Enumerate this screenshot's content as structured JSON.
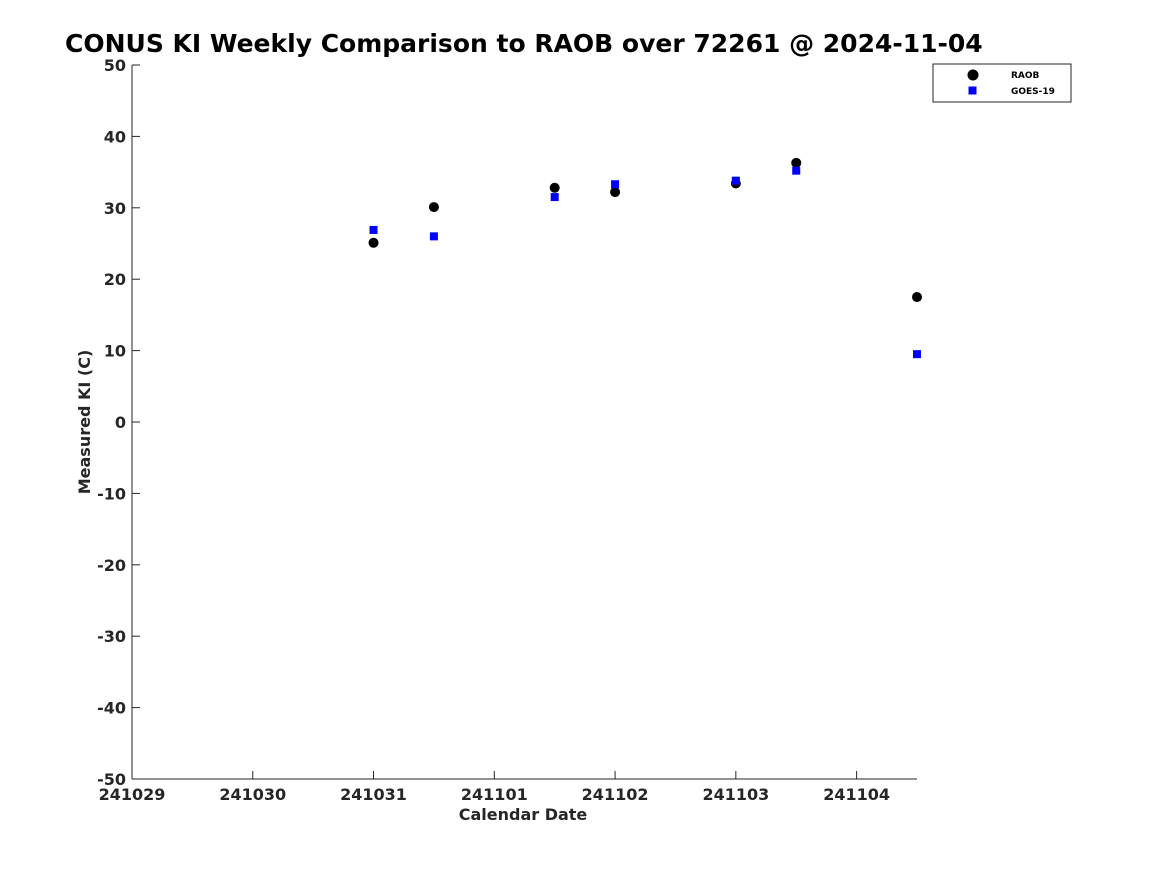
{
  "chart_data": {
    "type": "scatter",
    "title": "CONUS KI Weekly Comparison to RAOB over 72261 @ 2024-11-04",
    "xlabel": "Calendar Date",
    "ylabel": "Measured KI (C)",
    "x_ticks": [
      "241029",
      "241030",
      "241031",
      "241101",
      "241102",
      "241103",
      "241104"
    ],
    "xlim": [
      "2024-10-29T00:00",
      "2024-11-04T12:00"
    ],
    "ylim": [
      -50,
      50
    ],
    "y_ticks": [
      -50,
      -40,
      -30,
      -20,
      -10,
      0,
      10,
      20,
      30,
      40,
      50
    ],
    "legend_position": "top-right",
    "grid": false,
    "series": [
      {
        "name": "RAOB",
        "marker": "circle",
        "color": "#000000",
        "points": [
          {
            "x": "2024-10-31T00:00",
            "y": 25.1
          },
          {
            "x": "2024-10-31T12:00",
            "y": 30.1
          },
          {
            "x": "2024-11-01T12:00",
            "y": 32.8
          },
          {
            "x": "2024-11-02T00:00",
            "y": 32.2
          },
          {
            "x": "2024-11-03T00:00",
            "y": 33.4
          },
          {
            "x": "2024-11-03T12:00",
            "y": 36.3
          },
          {
            "x": "2024-11-04T12:00",
            "y": 17.5
          }
        ]
      },
      {
        "name": "GOES-19",
        "marker": "square",
        "color": "#0000ff",
        "points": [
          {
            "x": "2024-10-31T00:00",
            "y": 26.9
          },
          {
            "x": "2024-10-31T12:00",
            "y": 26.0
          },
          {
            "x": "2024-11-01T12:00",
            "y": 31.5
          },
          {
            "x": "2024-11-02T00:00",
            "y": 33.3
          },
          {
            "x": "2024-11-03T00:00",
            "y": 33.8
          },
          {
            "x": "2024-11-03T12:00",
            "y": 35.2
          },
          {
            "x": "2024-11-04T12:00",
            "y": 9.5
          }
        ]
      }
    ]
  }
}
